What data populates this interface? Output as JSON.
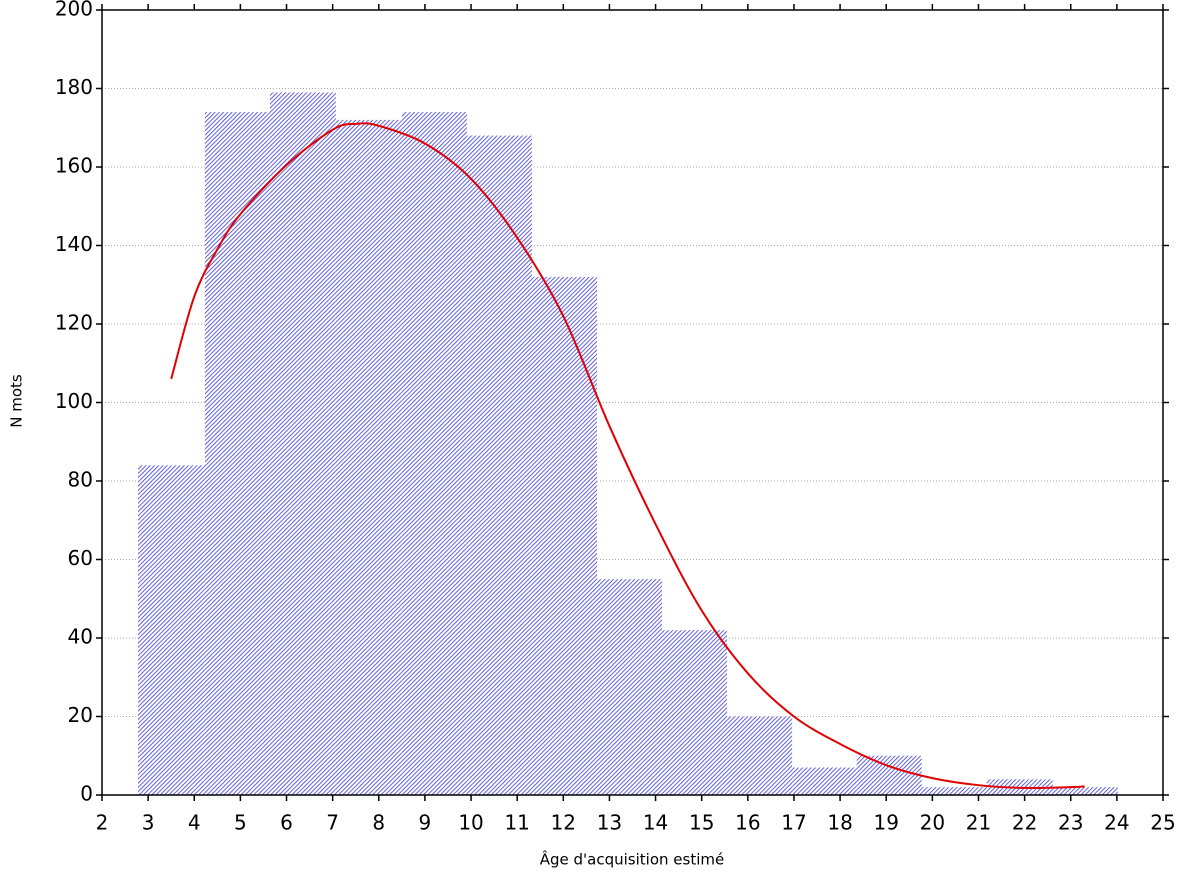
{
  "chart_data": {
    "type": "histogram",
    "xlabel": "Âge d'acquisition estimé",
    "ylabel": "N mots",
    "bins": [
      2.78,
      4.23,
      5.64,
      7.07,
      8.5,
      9.91,
      11.32,
      12.73,
      14.14,
      15.55,
      16.96,
      18.36,
      19.77,
      21.18,
      22.61,
      24.02
    ],
    "counts": [
      84,
      174,
      179,
      172,
      174,
      168,
      132,
      55,
      42,
      20,
      7,
      10,
      2,
      4,
      2
    ],
    "color": "#3a3ad8",
    "fit": {
      "color": "#e00000",
      "x": [
        3.5,
        4,
        4.5,
        5,
        6,
        7,
        7.5,
        8,
        9,
        10,
        11,
        12,
        13,
        14,
        15,
        16,
        17,
        18,
        19,
        20,
        21,
        22,
        23,
        23.3
      ],
      "values": [
        106,
        127,
        139,
        148,
        160.5,
        169.5,
        171,
        170.5,
        166,
        157,
        142,
        122,
        94,
        69,
        47,
        31,
        20,
        13,
        7.6,
        4.3,
        2.5,
        1.8,
        2,
        2.2
      ]
    },
    "xlim": [
      2,
      25
    ],
    "xticks": [
      2,
      3,
      4,
      5,
      6,
      7,
      8,
      9,
      10,
      11,
      12,
      13,
      14,
      15,
      16,
      17,
      18,
      19,
      20,
      21,
      22,
      23,
      24,
      25
    ],
    "ylim": [
      0,
      200
    ],
    "yticks": [
      0,
      20,
      40,
      60,
      80,
      100,
      120,
      140,
      160,
      180,
      200
    ],
    "grid": true
  }
}
